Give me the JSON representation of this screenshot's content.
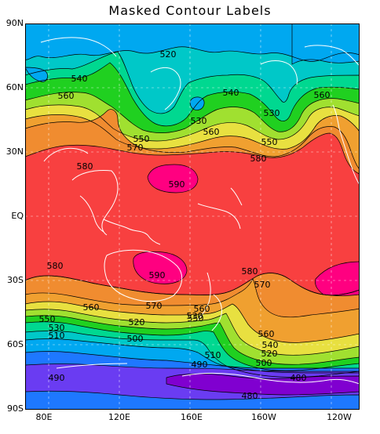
{
  "title": "Masked Contour Labels",
  "colors": {
    "z480": "#8000d0",
    "z490": "#6a3cf2",
    "z500": "#1e78ff",
    "z510": "#00a8f0",
    "z520": "#00c8c8",
    "z530": "#00d890",
    "z540": "#20d020",
    "z550": "#a0e030",
    "z560": "#e8e040",
    "z570": "#f0a030",
    "z580": "#f08c30",
    "z585": "#f84040",
    "z590": "#ff0080",
    "coast": "#ffffff",
    "grid": "#ffffff"
  },
  "axes": {
    "y_ticks": [
      "90N",
      "60N",
      "30N",
      "EQ",
      "30S",
      "60S",
      "90S"
    ],
    "x_ticks": [
      "80E",
      "120E",
      "160E",
      "160W",
      "120W"
    ]
  },
  "contour_labels": [
    {
      "text": "520"
    },
    {
      "text": "540"
    },
    {
      "text": "560"
    },
    {
      "text": "530"
    },
    {
      "text": "560"
    },
    {
      "text": "540"
    },
    {
      "text": "530"
    },
    {
      "text": "560"
    },
    {
      "text": "550"
    },
    {
      "text": "570"
    },
    {
      "text": "550"
    },
    {
      "text": "580"
    },
    {
      "text": "580"
    },
    {
      "text": "590"
    },
    {
      "text": "580"
    },
    {
      "text": "590"
    },
    {
      "text": "580"
    },
    {
      "text": "570"
    },
    {
      "text": "560"
    },
    {
      "text": "570"
    },
    {
      "text": "560"
    },
    {
      "text": "550"
    },
    {
      "text": "530"
    },
    {
      "text": "520"
    },
    {
      "text": "550"
    },
    {
      "text": "530"
    },
    {
      "text": "510"
    },
    {
      "text": "500"
    },
    {
      "text": "560"
    },
    {
      "text": "540"
    },
    {
      "text": "520"
    },
    {
      "text": "510"
    },
    {
      "text": "500"
    },
    {
      "text": "490"
    },
    {
      "text": "490"
    },
    {
      "text": "480"
    },
    {
      "text": "480"
    }
  ]
}
